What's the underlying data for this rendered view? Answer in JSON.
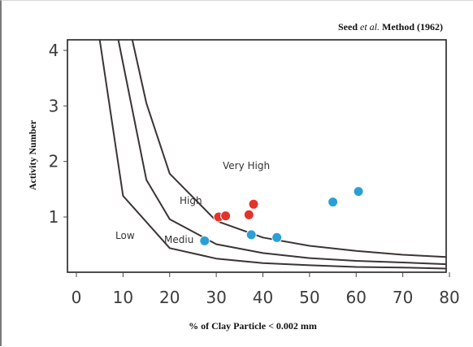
{
  "chart_data": {
    "type": "scatter",
    "title": "Seed et al. Method (1962)",
    "title_parts": [
      "Seed ",
      "et al.",
      " Method (1962)"
    ],
    "xlabel": "% of Clay Particle < 0.002 mm",
    "ylabel": "Activity Number",
    "xlim": [
      0,
      80
    ],
    "ylim": [
      0,
      4
    ],
    "x_ticks": [
      "0",
      "10",
      "20",
      "30",
      "40",
      "50",
      "60",
      "70",
      "80"
    ],
    "y_ticks": [
      "1",
      "2",
      "3",
      "4"
    ],
    "grid": false,
    "zones": [
      "Low",
      "Mediu",
      "High",
      "Very High"
    ],
    "boundaries": [
      {
        "x": [
          5,
          10,
          20,
          30,
          40,
          50,
          60,
          70,
          80
        ],
        "y": [
          4.5,
          1.38,
          0.44,
          0.25,
          0.17,
          0.13,
          0.1,
          0.09,
          0.07
        ]
      },
      {
        "x": [
          9,
          15,
          20,
          30,
          40,
          50,
          60,
          70,
          80
        ],
        "y": [
          4.5,
          1.67,
          0.96,
          0.51,
          0.35,
          0.26,
          0.21,
          0.18,
          0.15
        ]
      },
      {
        "x": [
          12,
          15,
          20,
          30,
          40,
          50,
          60,
          70,
          80
        ],
        "y": [
          4.5,
          3.05,
          1.78,
          0.93,
          0.63,
          0.48,
          0.39,
          0.32,
          0.28
        ]
      }
    ],
    "series": [
      {
        "color": "#e3332b",
        "x": [
          30.5,
          32,
          37,
          38
        ],
        "y": [
          1.0,
          1.02,
          1.04,
          1.23
        ]
      },
      {
        "color": "#2a9fd6",
        "x": [
          27.5,
          37.5,
          43,
          55,
          60.5
        ],
        "y": [
          0.57,
          0.68,
          0.63,
          1.27,
          1.46
        ]
      }
    ]
  }
}
